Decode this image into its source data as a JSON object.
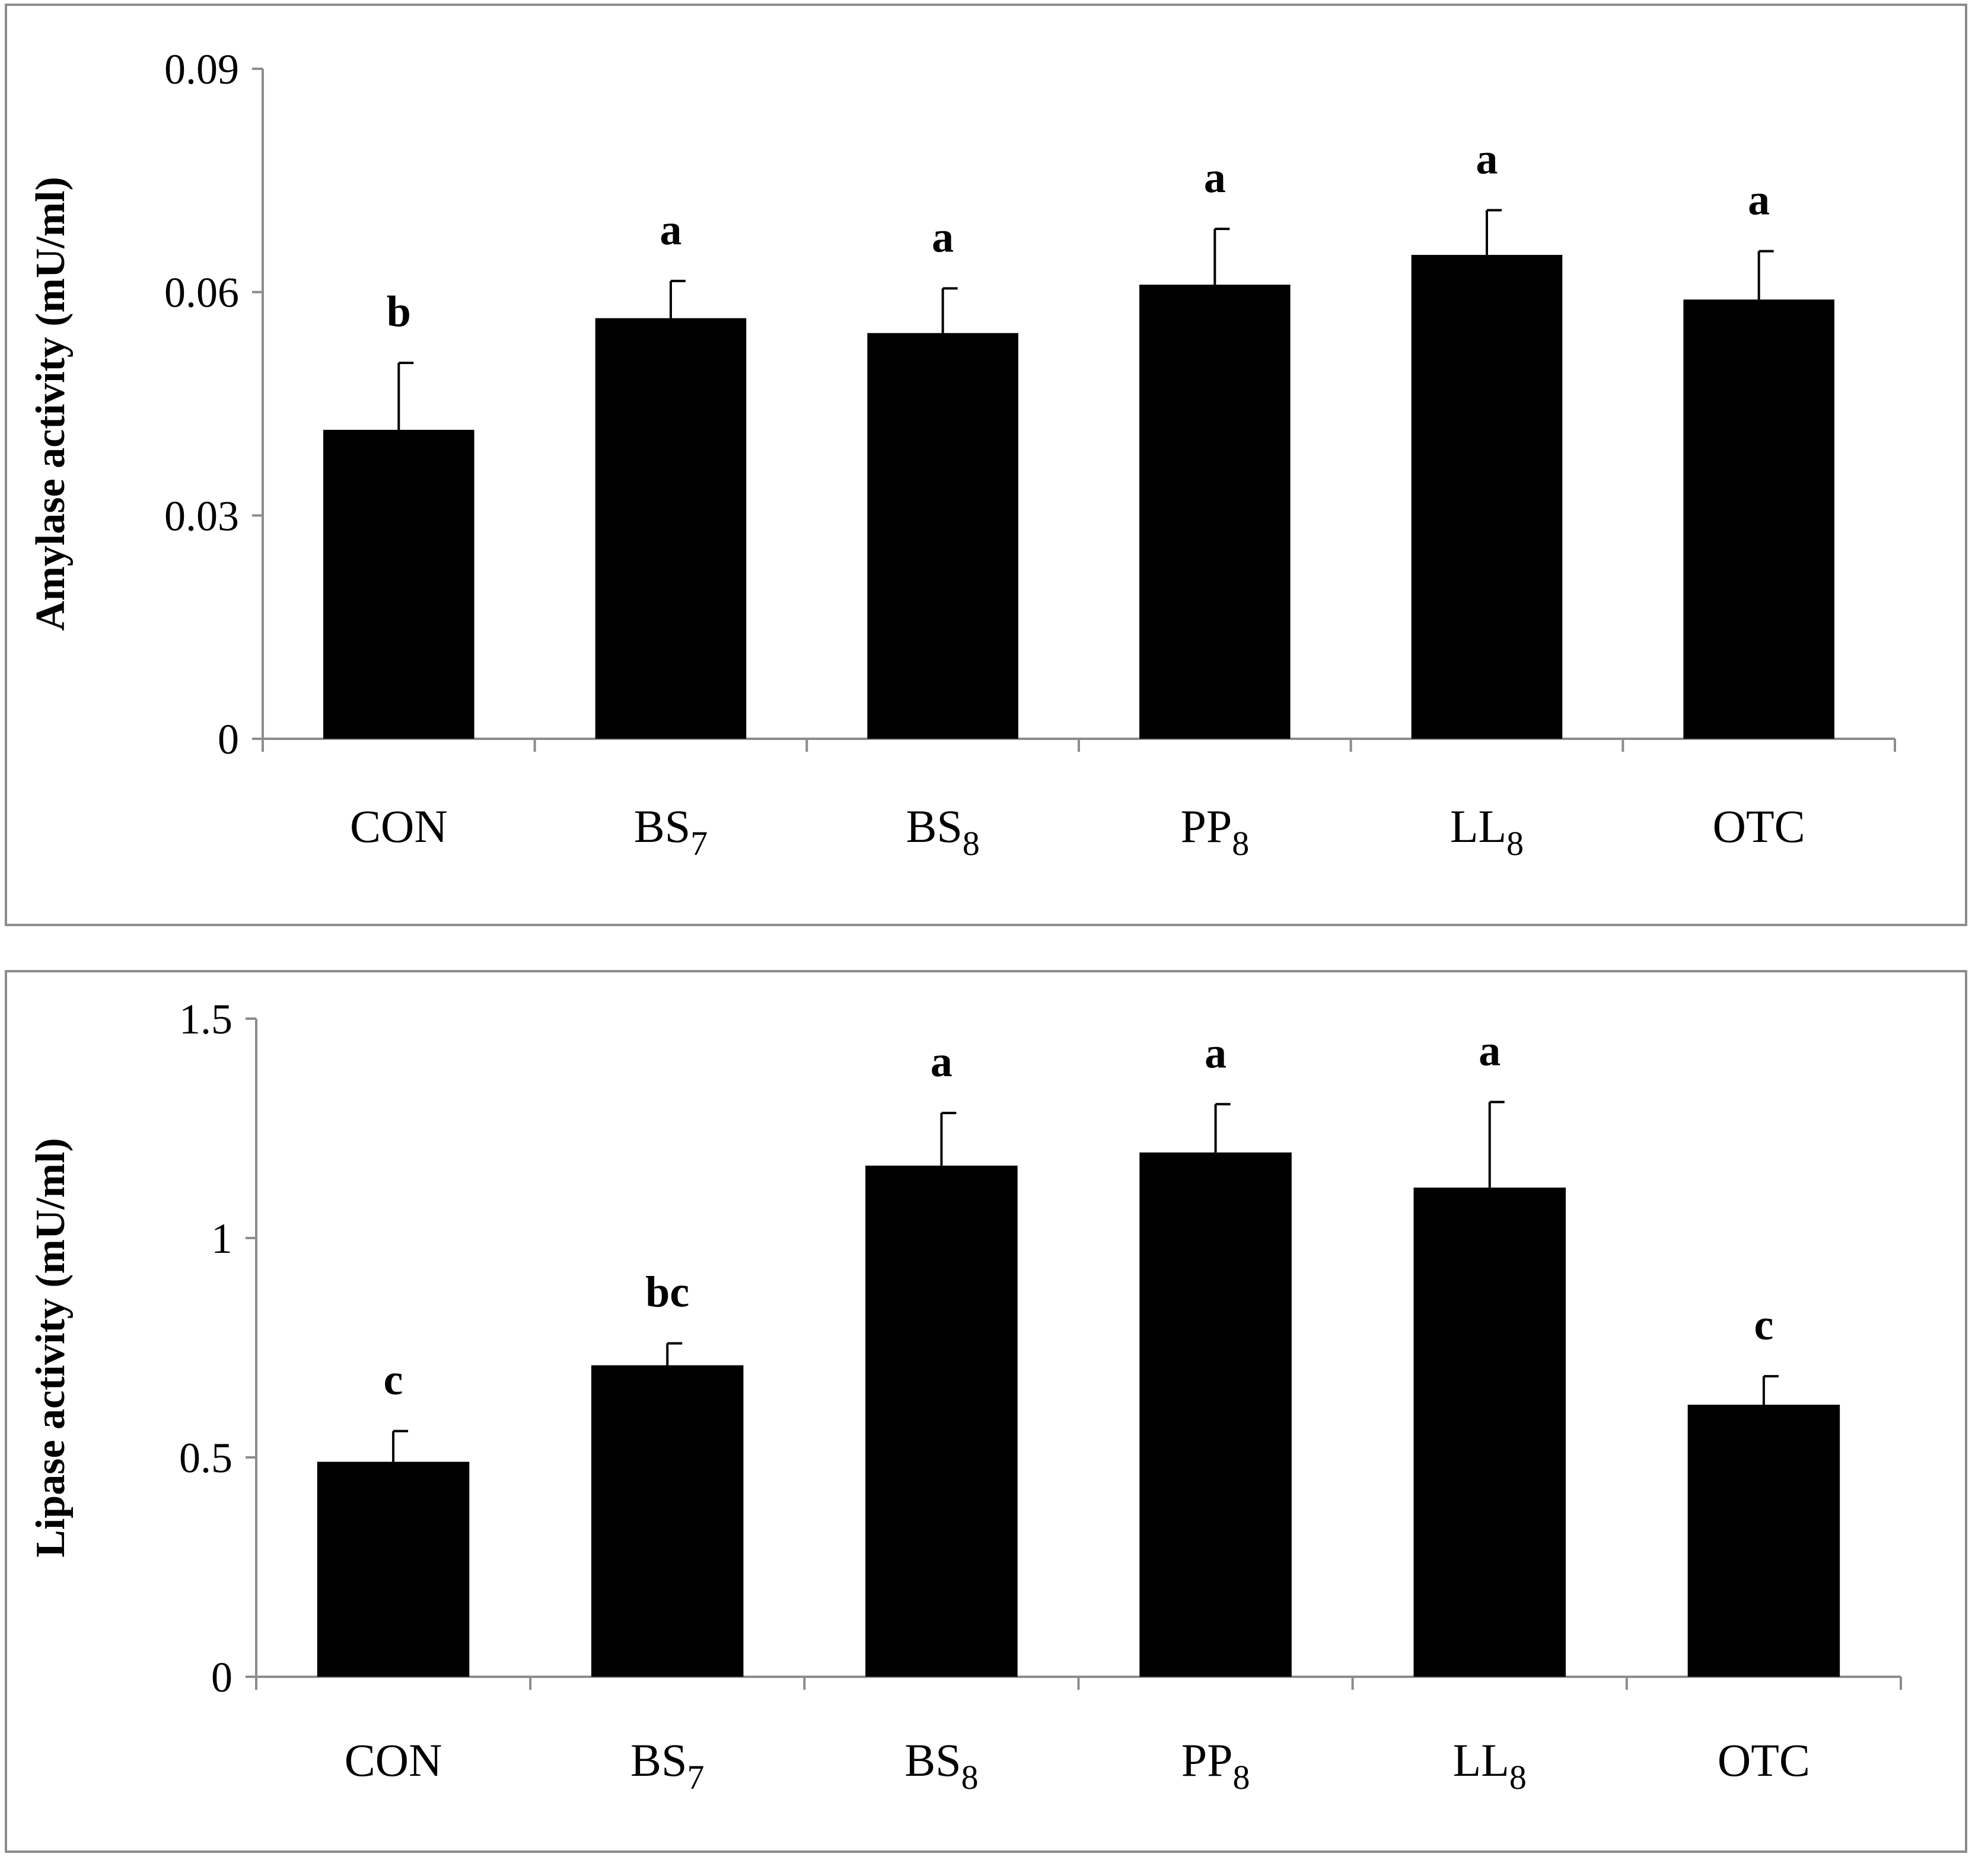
{
  "chart_data": [
    {
      "type": "bar",
      "title": "",
      "xlabel": "",
      "ylabel": "Amylase activity (mU/ml)",
      "ylim": [
        0,
        0.09
      ],
      "yticks": [
        0,
        0.03,
        0.06,
        0.09
      ],
      "ytick_labels": [
        "0",
        "0.03",
        "0.06",
        "0.09"
      ],
      "categories": [
        {
          "main": "CON",
          "sub": ""
        },
        {
          "main": "BS",
          "sub": "7"
        },
        {
          "main": "BS",
          "sub": "8"
        },
        {
          "main": "PP",
          "sub": "8"
        },
        {
          "main": "LL",
          "sub": "8"
        },
        {
          "main": "OTC",
          "sub": ""
        }
      ],
      "values": [
        0.0415,
        0.0565,
        0.0545,
        0.061,
        0.065,
        0.059
      ],
      "errors": [
        0.009,
        0.005,
        0.006,
        0.0075,
        0.006,
        0.0065
      ],
      "significance_letters": [
        "b",
        "a",
        "a",
        "a",
        "a",
        "a"
      ],
      "bar_color": "#000000",
      "grid": false,
      "legend": "none"
    },
    {
      "type": "bar",
      "title": "",
      "xlabel": "",
      "ylabel": "Lipase activity (mU/ml)",
      "ylim": [
        0,
        1.5
      ],
      "yticks": [
        0,
        0.5,
        1,
        1.5
      ],
      "ytick_labels": [
        "0",
        "0.5",
        "1",
        "1.5"
      ],
      "categories": [
        {
          "main": "CON",
          "sub": ""
        },
        {
          "main": "BS",
          "sub": "7"
        },
        {
          "main": "BS",
          "sub": "8"
        },
        {
          "main": "PP",
          "sub": "8"
        },
        {
          "main": "LL",
          "sub": "8"
        },
        {
          "main": "OTC",
          "sub": ""
        }
      ],
      "values": [
        0.49,
        0.71,
        1.165,
        1.195,
        1.115,
        0.62
      ],
      "errors": [
        0.07,
        0.05,
        0.12,
        0.11,
        0.195,
        0.065
      ],
      "significance_letters": [
        "c",
        "bc",
        "a",
        "a",
        "a",
        "c"
      ],
      "bar_color": "#000000",
      "grid": false,
      "legend": "none"
    }
  ]
}
